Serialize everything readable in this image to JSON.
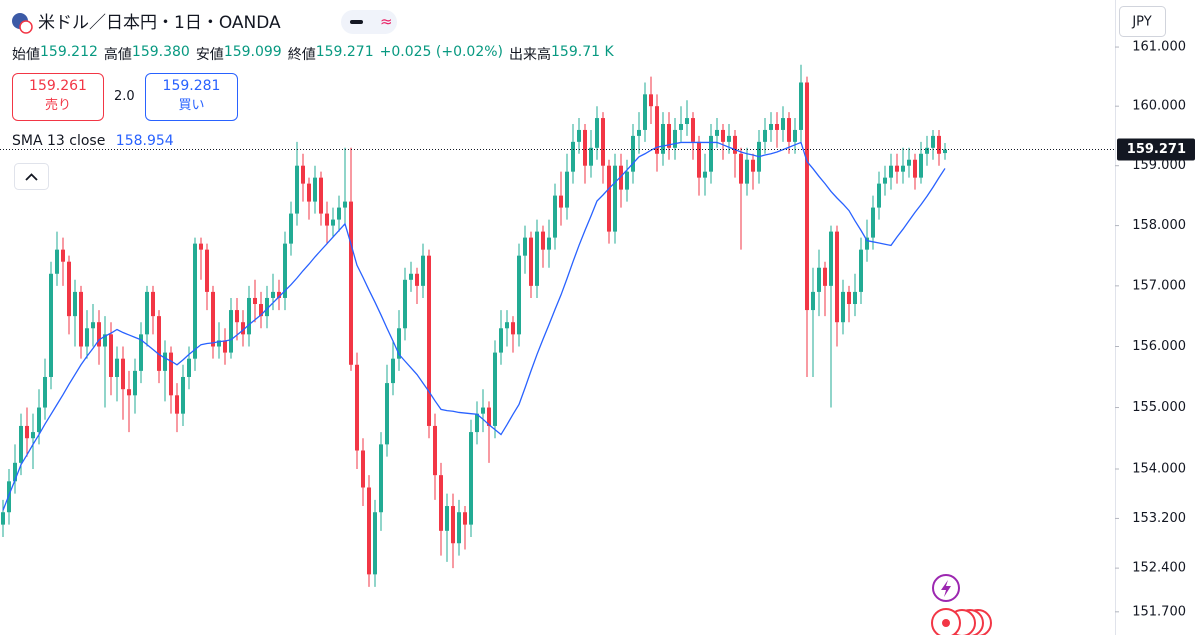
{
  "chart_data": {
    "type": "candlestick",
    "title": "米ドル／日本円・1日・OANDA",
    "currency": "JPY",
    "ohlc_legend": {
      "open_label": "始値",
      "open": "159.212",
      "high_label": "高値",
      "high": "159.380",
      "low_label": "安値",
      "low": "159.099",
      "close_label": "終値",
      "close": "159.271",
      "change": "+0.025 (+0.02%)",
      "volume_label": "出来高",
      "volume": "159.71 K"
    },
    "trade": {
      "sell_price": "159.261",
      "sell_label": "売り",
      "spread": "2.0",
      "buy_price": "159.281",
      "buy_label": "買い"
    },
    "up_color": "#22ab94",
    "down_color": "#f23645",
    "log_scale": true,
    "grid": false,
    "ylim": [
      151.33,
      161.8
    ],
    "yticks": [
      {
        "value": 161,
        "label": "161.000"
      },
      {
        "value": 160,
        "label": "160.000"
      },
      {
        "value": 159,
        "label": "159.000"
      },
      {
        "value": 158,
        "label": "158.000"
      },
      {
        "value": 157,
        "label": "157.000"
      },
      {
        "value": 156,
        "label": "156.000"
      },
      {
        "value": 155,
        "label": "155.000"
      },
      {
        "value": 154,
        "label": "154.000"
      },
      {
        "value": 153.2,
        "label": "153.200"
      },
      {
        "value": 152.4,
        "label": "152.400"
      },
      {
        "value": 151.7,
        "label": "151.700"
      }
    ],
    "last_price": 159.271,
    "open": [
      153.1,
      153.3,
      153.8,
      154.1,
      154.7,
      154.5,
      154.6,
      155.0,
      155.5,
      157.2,
      157.6,
      157.4,
      156.5,
      156.9,
      156.0,
      156.3,
      156.4,
      156.0,
      156.2,
      155.5,
      155.8,
      155.3,
      155.2,
      155.6,
      156.2,
      156.9,
      156.5,
      155.6,
      155.9,
      155.2,
      154.9,
      155.5,
      155.8,
      157.7,
      157.6,
      156.9,
      156.0,
      156.1,
      155.9,
      156.6,
      156.4,
      156.2,
      156.8,
      156.7,
      156.5,
      156.8,
      156.9,
      156.8,
      157.7,
      158.2,
      159.0,
      158.7,
      158.4,
      158.8,
      158.2,
      158.0,
      158.1,
      158.3,
      158.4,
      155.7,
      154.3,
      153.7,
      152.3,
      153.3,
      154.4,
      155.4,
      155.8,
      156.3,
      157.1,
      157.2,
      157.0,
      157.5,
      154.7,
      153.9,
      153.0,
      153.4,
      152.8,
      153.3,
      153.1,
      154.6,
      154.9,
      155.0,
      154.7,
      155.9,
      156.3,
      156.4,
      156.2,
      157.5,
      157.8,
      157.0,
      157.9,
      157.6,
      157.8,
      158.5,
      158.3,
      158.9,
      159.4,
      159.6,
      159.0,
      159.3,
      159.8,
      159.0,
      157.9,
      159.0,
      158.6,
      158.9,
      159.5,
      159.6,
      160.2,
      160.0,
      159.2,
      159.7,
      159.3,
      159.6,
      159.7,
      159.8,
      159.4,
      158.8,
      158.9,
      159.5,
      159.6,
      159.4,
      159.5,
      159.2,
      158.7,
      159.1,
      158.9,
      159.4,
      159.6,
      159.7,
      159.6,
      159.8,
      159.4,
      159.6,
      160.4,
      156.6,
      156.9,
      157.3,
      157.0,
      157.9,
      156.4,
      156.9,
      156.7,
      156.9,
      157.6,
      157.8,
      158.3,
      158.7,
      158.8,
      159.0,
      158.9,
      159.0,
      159.1,
      158.8,
      159.2,
      159.3,
      159.5,
      159.212
    ],
    "high": [
      153.5,
      154.0,
      154.4,
      154.9,
      155.0,
      154.9,
      155.3,
      155.8,
      157.4,
      157.9,
      157.8,
      157.5,
      157.1,
      157.0,
      156.6,
      156.7,
      156.6,
      156.5,
      156.4,
      156.0,
      156.0,
      155.6,
      155.8,
      156.4,
      157.0,
      157.0,
      156.6,
      156.1,
      156.0,
      155.4,
      155.7,
      156.0,
      157.8,
      157.8,
      157.7,
      157.0,
      156.4,
      156.3,
      156.8,
      156.8,
      156.6,
      157.0,
      157.1,
      156.9,
      157.0,
      157.2,
      157.1,
      157.9,
      158.4,
      159.4,
      159.2,
      158.8,
      159.0,
      158.9,
      158.4,
      158.3,
      158.5,
      159.3,
      159.3,
      155.9,
      154.5,
      153.9,
      153.5,
      154.6,
      155.7,
      156.1,
      156.6,
      157.3,
      157.4,
      157.3,
      157.7,
      157.6,
      154.9,
      154.1,
      153.6,
      153.6,
      153.5,
      153.4,
      154.8,
      155.1,
      155.3,
      155.1,
      156.1,
      156.6,
      156.6,
      156.5,
      157.7,
      158.0,
      157.9,
      158.1,
      158.0,
      158.1,
      158.7,
      158.9,
      159.2,
      159.7,
      159.8,
      159.7,
      159.6,
      160.0,
      159.9,
      159.1,
      159.2,
      159.2,
      159.1,
      159.7,
      159.9,
      160.4,
      160.5,
      160.2,
      159.9,
      159.9,
      159.8,
      160.0,
      160.1,
      159.9,
      159.5,
      159.2,
      159.7,
      159.8,
      159.7,
      159.7,
      159.6,
      159.3,
      159.3,
      159.2,
      159.6,
      159.8,
      159.9,
      159.9,
      160.0,
      159.9,
      159.8,
      160.7,
      160.5,
      157.3,
      157.6,
      157.4,
      158.0,
      158.0,
      157.1,
      157.0,
      157.2,
      157.8,
      158.1,
      158.5,
      158.9,
      159.0,
      159.2,
      159.2,
      159.3,
      159.3,
      159.2,
      159.4,
      159.5,
      159.6,
      159.6,
      159.38
    ],
    "low": [
      152.9,
      153.1,
      153.6,
      153.9,
      154.2,
      154.0,
      154.4,
      154.8,
      155.3,
      157.0,
      157.0,
      156.2,
      156.0,
      155.8,
      155.8,
      156.0,
      155.7,
      155.0,
      155.2,
      155.1,
      154.8,
      154.6,
      154.9,
      155.4,
      156.0,
      156.2,
      155.4,
      155.1,
      154.9,
      154.6,
      154.7,
      155.3,
      155.6,
      157.1,
      156.6,
      155.8,
      155.8,
      155.7,
      155.8,
      156.1,
      156.0,
      156.0,
      156.4,
      156.3,
      156.3,
      156.6,
      156.6,
      156.6,
      157.5,
      158.0,
      158.4,
      158.1,
      158.2,
      158.0,
      157.7,
      157.8,
      157.9,
      158.0,
      155.6,
      154.0,
      153.4,
      152.1,
      152.1,
      153.0,
      154.2,
      155.2,
      155.6,
      156.1,
      156.9,
      156.7,
      156.8,
      154.5,
      153.5,
      152.6,
      152.5,
      152.4,
      152.6,
      152.7,
      152.9,
      154.4,
      154.6,
      154.1,
      154.5,
      155.7,
      156.0,
      155.9,
      156.0,
      157.2,
      156.8,
      156.8,
      157.3,
      157.3,
      157.6,
      158.0,
      158.1,
      158.7,
      159.2,
      158.7,
      158.8,
      159.1,
      158.7,
      157.7,
      157.7,
      158.3,
      158.4,
      158.7,
      159.2,
      159.4,
      159.7,
      158.9,
      159.0,
      159.1,
      159.1,
      159.4,
      159.5,
      159.1,
      158.5,
      158.5,
      158.7,
      159.3,
      159.1,
      159.2,
      158.8,
      157.6,
      158.5,
      158.6,
      158.7,
      159.2,
      159.4,
      159.3,
      159.4,
      159.2,
      159.2,
      159.4,
      155.5,
      155.5,
      156.5,
      156.5,
      155.0,
      156.0,
      156.2,
      156.4,
      156.5,
      156.7,
      157.4,
      157.6,
      158.1,
      158.5,
      158.6,
      158.7,
      158.7,
      158.8,
      158.6,
      158.7,
      159.0,
      159.1,
      159.0,
      159.099
    ],
    "close": [
      153.3,
      153.8,
      154.1,
      154.7,
      154.5,
      154.6,
      155.0,
      155.5,
      157.2,
      157.6,
      157.4,
      156.5,
      156.9,
      156.0,
      156.3,
      156.4,
      156.0,
      156.2,
      155.5,
      155.8,
      155.3,
      155.2,
      155.6,
      156.2,
      156.9,
      156.5,
      155.6,
      155.9,
      155.2,
      154.9,
      155.5,
      155.8,
      157.7,
      157.6,
      156.9,
      156.0,
      156.1,
      155.9,
      156.6,
      156.4,
      156.2,
      156.8,
      156.7,
      156.5,
      156.8,
      156.9,
      156.8,
      157.7,
      158.2,
      159.0,
      158.7,
      158.4,
      158.8,
      158.2,
      158.0,
      158.1,
      158.3,
      158.4,
      155.7,
      154.3,
      153.7,
      152.3,
      153.3,
      154.4,
      155.4,
      155.8,
      156.3,
      157.1,
      157.2,
      157.0,
      157.5,
      154.7,
      153.9,
      153.0,
      153.4,
      152.8,
      153.3,
      153.1,
      154.6,
      154.9,
      155.0,
      154.7,
      155.9,
      156.3,
      156.4,
      156.2,
      157.5,
      157.8,
      157.0,
      157.9,
      157.6,
      157.8,
      158.5,
      158.3,
      158.9,
      159.4,
      159.6,
      159.0,
      159.3,
      159.8,
      159.0,
      157.9,
      159.0,
      158.6,
      158.9,
      159.5,
      159.6,
      160.2,
      160.0,
      159.2,
      159.7,
      159.3,
      159.6,
      159.7,
      159.8,
      159.4,
      158.8,
      158.9,
      159.5,
      159.6,
      159.4,
      159.5,
      159.2,
      158.7,
      159.1,
      158.9,
      159.4,
      159.6,
      159.7,
      159.6,
      159.8,
      159.4,
      159.6,
      160.4,
      156.6,
      156.9,
      157.3,
      157.0,
      157.9,
      156.4,
      156.9,
      156.7,
      156.9,
      157.6,
      157.8,
      158.3,
      158.7,
      158.8,
      159.0,
      158.9,
      159.0,
      159.1,
      158.8,
      159.2,
      159.3,
      159.5,
      159.2,
      159.271
    ],
    "series": [
      {
        "name": "SMA 13 close",
        "color": "#2962ff",
        "values": [
          153.33,
          153.58,
          153.82,
          154.07,
          154.23,
          154.4,
          154.56,
          154.73,
          154.89,
          155.05,
          155.21,
          155.38,
          155.54,
          155.7,
          155.84,
          155.97,
          156.11,
          156.17,
          156.22,
          156.28,
          156.23,
          156.19,
          156.15,
          156.11,
          156.03,
          155.95,
          155.87,
          155.81,
          155.76,
          155.7,
          155.78,
          155.87,
          155.95,
          156.03,
          156.05,
          156.06,
          156.08,
          156.09,
          156.11,
          156.19,
          156.27,
          156.36,
          156.44,
          156.52,
          156.62,
          156.72,
          156.82,
          156.92,
          157.02,
          157.13,
          157.25,
          157.36,
          157.48,
          157.59,
          157.7,
          157.81,
          157.92,
          158.03,
          157.69,
          157.34,
          157.14,
          156.93,
          156.73,
          156.52,
          156.3,
          156.09,
          155.87,
          155.76,
          155.65,
          155.54,
          155.4,
          155.26,
          155.11,
          154.97,
          154.95,
          154.94,
          154.92,
          154.91,
          154.9,
          154.89,
          154.81,
          154.72,
          154.64,
          154.56,
          154.72,
          154.89,
          155.05,
          155.32,
          155.6,
          155.87,
          156.12,
          156.36,
          156.61,
          156.85,
          157.12,
          157.4,
          157.67,
          157.92,
          158.16,
          158.41,
          158.51,
          158.62,
          158.72,
          158.82,
          158.93,
          159.04,
          159.15,
          159.2,
          159.26,
          159.31,
          159.33,
          159.35,
          159.37,
          159.39,
          159.39,
          159.39,
          159.39,
          159.39,
          159.39,
          159.39,
          159.35,
          159.31,
          159.27,
          159.23,
          159.2,
          159.18,
          159.15,
          159.18,
          159.2,
          159.23,
          159.27,
          159.31,
          159.35,
          159.39,
          159.07,
          158.95,
          158.82,
          158.7,
          158.57,
          158.46,
          158.36,
          158.25,
          158.08,
          157.92,
          157.75,
          157.73,
          157.71,
          157.69,
          157.67,
          157.81,
          157.94,
          158.08,
          158.22,
          158.35,
          158.49,
          158.64,
          158.8,
          158.954
        ]
      }
    ]
  }
}
